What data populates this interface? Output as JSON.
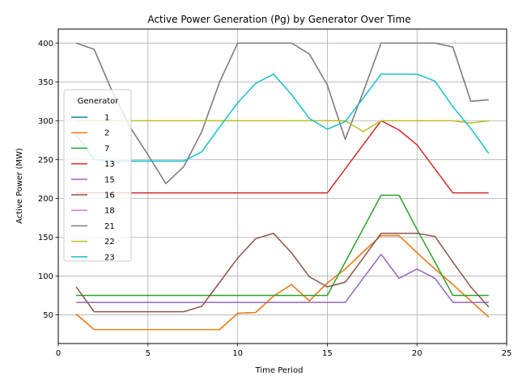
{
  "chart_data": {
    "type": "line",
    "title": "Active Power Generation (Pg) by Generator Over Time",
    "xlabel": "Time Period",
    "ylabel": "Active Power (MW)",
    "xlim": [
      0,
      25
    ],
    "ylim": [
      13,
      418
    ],
    "xticks": [
      0,
      5,
      10,
      15,
      20,
      25
    ],
    "yticks": [
      50,
      100,
      150,
      200,
      250,
      300,
      350,
      400
    ],
    "grid": true,
    "legend": {
      "title": "Generator",
      "placement": "center-left"
    },
    "x": [
      1,
      2,
      3,
      4,
      5,
      6,
      7,
      8,
      9,
      10,
      11,
      12,
      13,
      14,
      15,
      16,
      17,
      18,
      19,
      20,
      21,
      22,
      23,
      24
    ],
    "series": [
      {
        "name": "1",
        "color": "#1f77b4",
        "values": [
          51,
          31,
          31,
          31,
          31,
          31,
          31,
          31,
          31,
          52,
          53,
          74,
          89,
          68,
          91,
          109,
          131,
          152,
          152,
          130,
          109,
          89,
          68,
          47
        ]
      },
      {
        "name": "2",
        "color": "#ff7f0e",
        "values": [
          51,
          31,
          31,
          31,
          31,
          31,
          31,
          31,
          31,
          52,
          53,
          74,
          89,
          68,
          91,
          109,
          131,
          152,
          152,
          130,
          109,
          89,
          68,
          47
        ]
      },
      {
        "name": "7",
        "color": "#2ca02c",
        "values": [
          75,
          75,
          75,
          75,
          75,
          75,
          75,
          75,
          75,
          75,
          75,
          75,
          75,
          75,
          75,
          118,
          161,
          204,
          204,
          160,
          118,
          75,
          75,
          75
        ]
      },
      {
        "name": "13",
        "color": "#d62728",
        "values": [
          207,
          207,
          207,
          207,
          207,
          207,
          207,
          207,
          207,
          207,
          207,
          207,
          207,
          207,
          207,
          238,
          269,
          300,
          288,
          269,
          238,
          207,
          207,
          207
        ]
      },
      {
        "name": "15",
        "color": "#9467bd",
        "values": [
          66,
          66,
          66,
          66,
          66,
          66,
          66,
          66,
          66,
          66,
          66,
          66,
          66,
          66,
          66,
          66,
          97,
          128,
          97,
          109,
          97,
          66,
          66,
          66
        ]
      },
      {
        "name": "16",
        "color": "#8c564b",
        "values": [
          86,
          54,
          54,
          54,
          54,
          54,
          54,
          61,
          92,
          123,
          148,
          155,
          130,
          99,
          86,
          92,
          123,
          155,
          155,
          155,
          151,
          118,
          86,
          60
        ]
      },
      {
        "name": "18",
        "color": "#e377c2",
        "values": [
          400,
          392,
          338,
          292,
          256,
          219,
          241,
          286,
          350,
          400,
          400,
          400,
          400,
          386,
          346,
          276,
          337,
          400,
          400,
          400,
          400,
          395,
          325,
          327
        ]
      },
      {
        "name": "21",
        "color": "#7f7f7f",
        "values": [
          400,
          392,
          338,
          292,
          256,
          219,
          241,
          286,
          350,
          400,
          400,
          400,
          400,
          386,
          346,
          276,
          337,
          400,
          400,
          400,
          400,
          395,
          325,
          327
        ]
      },
      {
        "name": "22",
        "color": "#bcbd22",
        "values": [
          300,
          300,
          300,
          300,
          300,
          300,
          300,
          300,
          300,
          300,
          300,
          300,
          300,
          300,
          300,
          300,
          286,
          300,
          300,
          300,
          300,
          300,
          297,
          300
        ]
      },
      {
        "name": "23",
        "color": "#17becf",
        "values": [
          282,
          250,
          248,
          248,
          248,
          248,
          248,
          260,
          292,
          323,
          348,
          360,
          334,
          303,
          289,
          299,
          329,
          360,
          360,
          360,
          351,
          318,
          290,
          258
        ]
      }
    ]
  }
}
